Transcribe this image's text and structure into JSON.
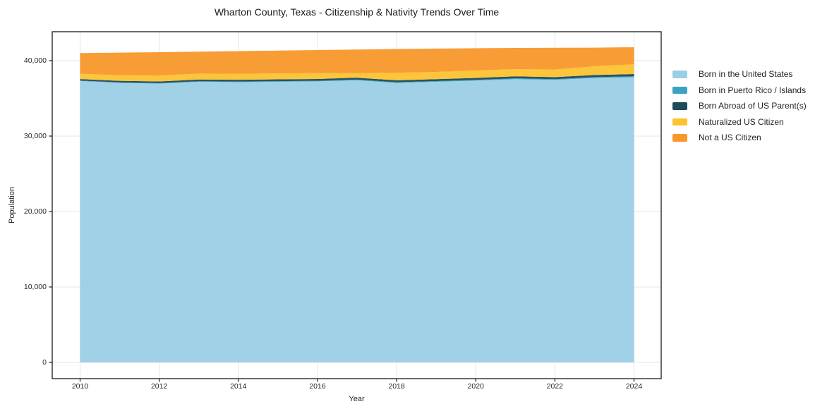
{
  "figure": {
    "background": "#ffffff",
    "frame_color": "#1a1a1a",
    "grid_color": "#e4e4e4",
    "tick_label_color": "#262626"
  },
  "chart_data": {
    "type": "area",
    "stacked": true,
    "title": "Wharton County, Texas - Citizenship & Nativity Trends Over Time",
    "xlabel": "Year",
    "ylabel": "Population",
    "x": [
      2010,
      2011,
      2012,
      2013,
      2014,
      2015,
      2016,
      2017,
      2018,
      2019,
      2020,
      2021,
      2022,
      2023,
      2024
    ],
    "x_tick_labels": [
      "2010",
      "2012",
      "2014",
      "2016",
      "2018",
      "2020",
      "2022",
      "2024"
    ],
    "x_ticks": [
      2010,
      2012,
      2014,
      2016,
      2018,
      2020,
      2022,
      2024
    ],
    "y_ticks": [
      0,
      10000,
      20000,
      30000,
      40000
    ],
    "y_tick_labels": [
      "0",
      "10,000",
      "20,000",
      "30,000",
      "40,000"
    ],
    "ylim": [
      0,
      43830
    ],
    "xlim": [
      2009.3,
      2024.7
    ],
    "grid": true,
    "legend_position": "right of plot, top",
    "series": [
      {
        "name": "Born in the United States",
        "color": "#9ccfe6",
        "values": [
          37300,
          37050,
          36950,
          37200,
          37150,
          37200,
          37250,
          37400,
          37050,
          37200,
          37350,
          37550,
          37450,
          37700,
          37800
        ]
      },
      {
        "name": "Born in Puerto Rico / Islands",
        "color": "#3aa3c2",
        "values": [
          60,
          60,
          70,
          70,
          80,
          80,
          80,
          90,
          90,
          90,
          100,
          100,
          100,
          110,
          120
        ]
      },
      {
        "name": "Born Abroad of US Parent(s)",
        "color": "#1e4a5b",
        "values": [
          200,
          210,
          220,
          230,
          230,
          240,
          240,
          250,
          250,
          260,
          260,
          270,
          270,
          290,
          300
        ]
      },
      {
        "name": "Naturalized US Citizen",
        "color": "#fcc230",
        "values": [
          700,
          750,
          800,
          780,
          800,
          780,
          780,
          620,
          1000,
          950,
          980,
          950,
          1000,
          1150,
          1300
        ]
      },
      {
        "name": "Not a US Citizen",
        "color": "#f8982a",
        "values": [
          2740,
          2990,
          3080,
          2910,
          3000,
          3030,
          3050,
          3110,
          3150,
          3100,
          2960,
          2810,
          2880,
          2470,
          2260
        ]
      }
    ]
  }
}
